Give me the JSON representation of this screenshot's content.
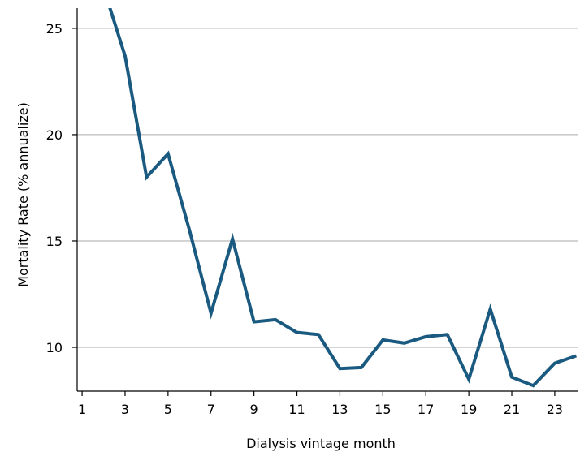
{
  "chart_data": {
    "type": "line",
    "x_label": "Dialysis vintage month",
    "y_label": "Mortality Rate (% annualize)",
    "x": [
      2,
      3,
      4,
      5,
      6,
      7,
      8,
      9,
      10,
      11,
      12,
      13,
      14,
      15,
      16,
      17,
      18,
      19,
      20,
      21,
      22,
      23,
      24
    ],
    "series": [
      {
        "color": "#1a5a80",
        "values": [
          26.9,
          23.7,
          18.0,
          19.1,
          15.5,
          11.6,
          15.1,
          11.2,
          11.3,
          10.7,
          10.6,
          9.0,
          9.05,
          10.35,
          10.2,
          10.5,
          10.6,
          8.5,
          11.8,
          8.6,
          8.2,
          9.25,
          9.6
        ]
      }
    ],
    "xlim": [
      0.77,
      24.1
    ],
    "ylim": [
      7.94,
      25.95
    ],
    "xticks": [
      1,
      3,
      5,
      7,
      9,
      11,
      13,
      15,
      17,
      19,
      21,
      23
    ],
    "yticks": [
      10,
      15,
      20,
      25
    ],
    "grid": true
  }
}
